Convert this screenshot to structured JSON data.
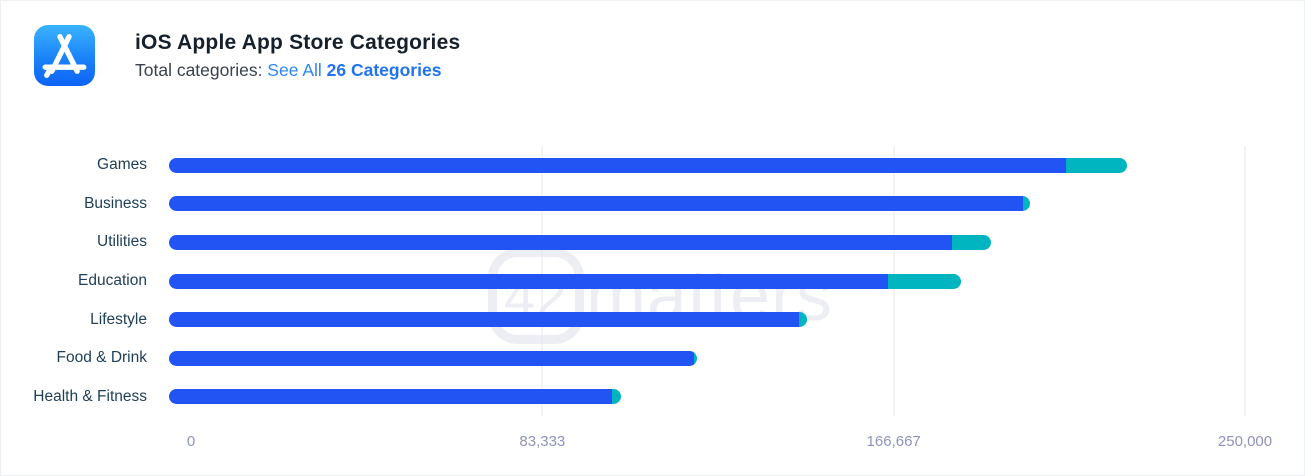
{
  "header": {
    "title": "iOS Apple App Store Categories",
    "subtitle_prefix": "Total categories: ",
    "link_plain": "See All ",
    "link_strong": "26 Categories"
  },
  "watermark": {
    "number": "42",
    "text": "matters"
  },
  "colors": {
    "bar_blue": "#2154f3",
    "bar_teal": "#00b4c0",
    "gridline": "#e4e6ef",
    "category_label": "#1f4057",
    "tick_label": "#8e93ba",
    "link": "#2e86f6",
    "icon_gradient_top": "#3bb3fe",
    "icon_gradient_bottom": "#0d63f5"
  },
  "chart_data": {
    "type": "bar",
    "orientation": "horizontal",
    "title": "iOS Apple App Store Categories",
    "xlabel": "",
    "ylabel": "",
    "xlim": [
      0,
      250000
    ],
    "xticks": [
      "0",
      "83,333",
      "166,667",
      "250,000"
    ],
    "xtick_values": [
      0,
      83333,
      166667,
      250000
    ],
    "grid": "vertical lines at non-zero ticks",
    "legend": "none",
    "categories": [
      "Games",
      "Business",
      "Utilities",
      "Education",
      "Lifestyle",
      "Food & Drink",
      "Health & Fitness"
    ],
    "series": [
      {
        "name": "apps-main",
        "color": "#2154f3",
        "values": [
          208500,
          198500,
          182000,
          167000,
          146400,
          122000,
          103000
        ]
      },
      {
        "name": "apps-recent-tip",
        "color": "#00b4c0",
        "values": [
          14000,
          1500,
          9000,
          17000,
          1900,
          700,
          2100
        ]
      }
    ]
  }
}
